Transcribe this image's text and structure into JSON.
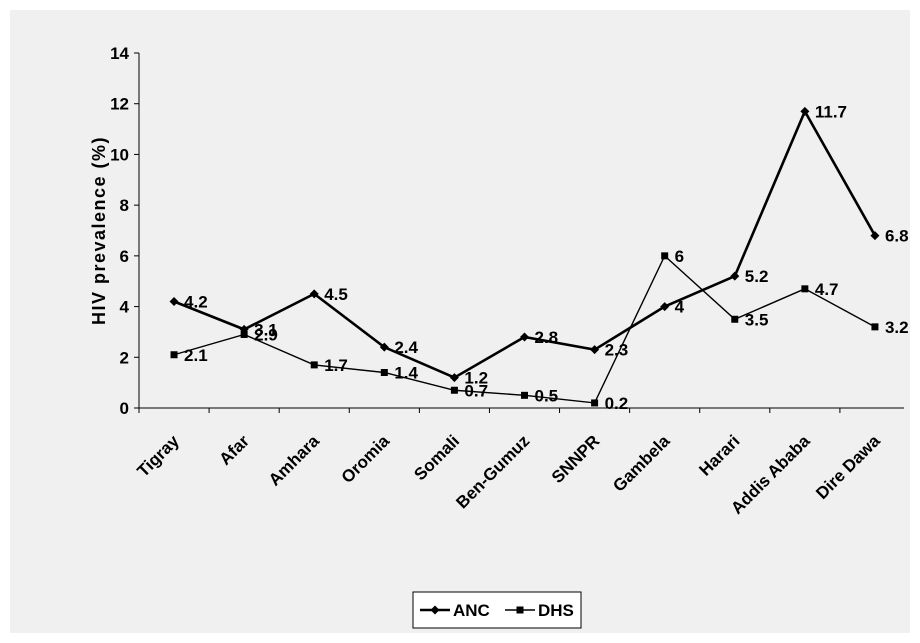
{
  "chart_data": {
    "type": "line",
    "title": "",
    "xlabel": "",
    "ylabel": "HIV prevalence (%)",
    "ylim": [
      0,
      14
    ],
    "yticks": [
      0,
      2,
      4,
      6,
      8,
      10,
      12,
      14
    ],
    "grid": false,
    "legend_position": "bottom",
    "categories": [
      "Tigray",
      "Afar",
      "Amhara",
      "Oromia",
      "Somali",
      "Ben-Gumuz",
      "SNNPR",
      "Gambela",
      "Harari",
      "Addis Ababa",
      "Dire Dawa"
    ],
    "series": [
      {
        "name": "ANC",
        "marker": "diamond",
        "values": [
          4.2,
          3.1,
          4.5,
          2.4,
          1.2,
          2.8,
          2.3,
          4,
          5.2,
          11.7,
          6.8
        ],
        "labels": [
          "4.2",
          "3.1",
          "4.5",
          "2.4",
          "1.2",
          "2.8",
          "2.3",
          "4",
          "5.2",
          "11.7",
          "6.8"
        ],
        "color": "#000000"
      },
      {
        "name": "DHS",
        "marker": "square",
        "values": [
          2.1,
          2.9,
          1.7,
          1.4,
          0.7,
          0.5,
          0.2,
          6,
          3.5,
          4.7,
          3.2
        ],
        "labels": [
          "2.1",
          "2.9",
          "1.7",
          "1.4",
          "0.7",
          "0.5",
          "0.2",
          "6",
          "3.5",
          "4.7",
          "3.2"
        ],
        "color": "#000000"
      }
    ]
  },
  "colors": {
    "panel_background": "#f0f0f0",
    "line": "#000000"
  }
}
